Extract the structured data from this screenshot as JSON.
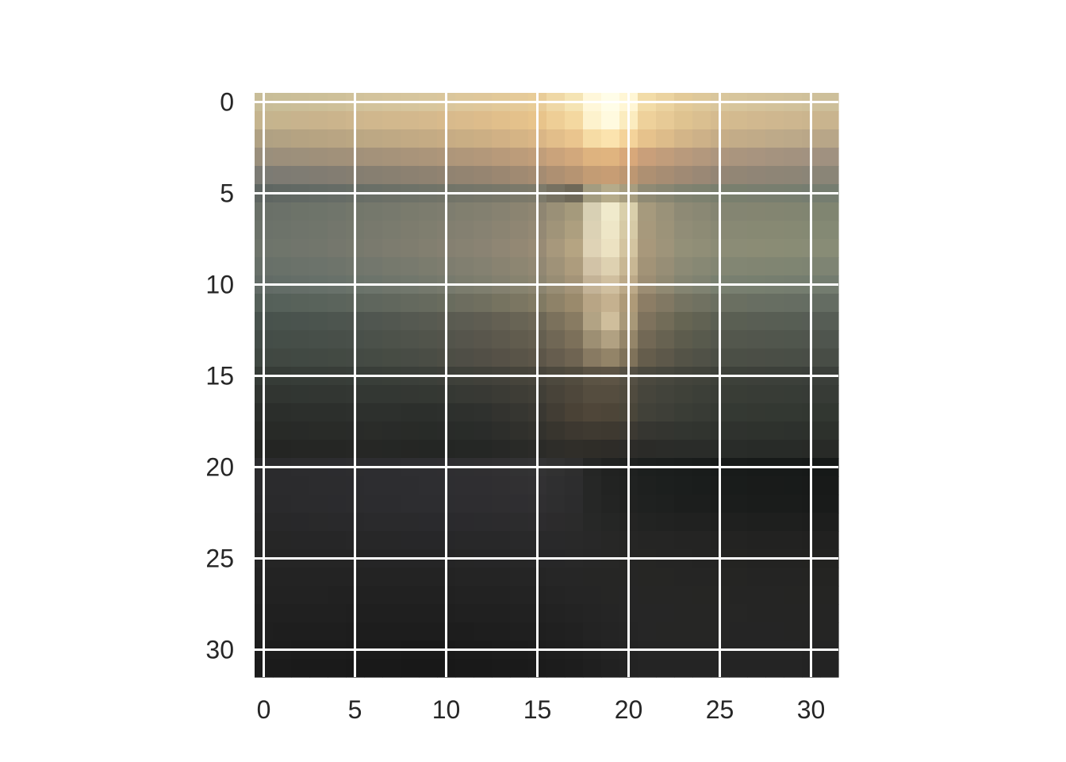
{
  "chart_data": {
    "type": "heatmap",
    "title": "",
    "xlabel": "",
    "ylabel": "",
    "xlim": [
      -0.5,
      31.5
    ],
    "ylim": [
      31.5,
      -0.5
    ],
    "grid": true,
    "x_ticks": [
      0,
      5,
      10,
      15,
      20,
      25,
      30
    ],
    "y_ticks": [
      0,
      5,
      10,
      15,
      20,
      25,
      30
    ],
    "x_tick_labels": [
      "0",
      "5",
      "10",
      "15",
      "20",
      "25",
      "30"
    ],
    "y_tick_labels": [
      "0",
      "5",
      "10",
      "15",
      "20",
      "25",
      "30"
    ],
    "image": {
      "rows": 32,
      "cols": 32,
      "row_keys": [
        0,
        1,
        2,
        3,
        4,
        5,
        6,
        8,
        10,
        11,
        12,
        14,
        15,
        17,
        19,
        20,
        22,
        24,
        26,
        28,
        30,
        31
      ],
      "col_keys": [
        0,
        3,
        6,
        9,
        12,
        15,
        17,
        18,
        19,
        20,
        21,
        23,
        25,
        28,
        31
      ],
      "key_colors": [
        [
          "#c8bd98",
          "#ccbf98",
          "#d3c39c",
          "#d8c69d",
          "#dfc79a",
          "#e8cc98",
          "#f5e4b4",
          "#fff7da",
          "#fffde8",
          "#fff6d5",
          "#f2dca8",
          "#e3ca98",
          "#d9c69c",
          "#d3c29b",
          "#cdbf9a"
        ],
        [
          "#c5b48e",
          "#c9b38c",
          "#d0b78d",
          "#d5b98d",
          "#ddbc8b",
          "#e8c48b",
          "#f4d8a0",
          "#fdf2cd",
          "#fffadf",
          "#fbecbf",
          "#eed19b",
          "#dfc390",
          "#d5bb8f",
          "#cfb78f",
          "#c9b48e"
        ],
        [
          "#b0a183",
          "#b7a482",
          "#bda884",
          "#c4ab84",
          "#ccaf84",
          "#dab686",
          "#eac58e",
          "#f6dca5",
          "#fbe3ae",
          "#f4d39a",
          "#e6c28c",
          "#d3b588",
          "#c6ad87",
          "#beaa89",
          "#b8a688"
        ],
        [
          "#9a8f7c",
          "#9f907a",
          "#a4927a",
          "#ab957a",
          "#b3987a",
          "#c19e7a",
          "#d2a87c",
          "#deb37f",
          "#e0b47f",
          "#d8a87a",
          "#c99f7a",
          "#b99a7c",
          "#ad967e",
          "#a5937f",
          "#a09180"
        ],
        [
          "#7c7b74",
          "#817c72",
          "#877f71",
          "#8e8271",
          "#968571",
          "#a58c72",
          "#b69472",
          "#c39c74",
          "#c79d74",
          "#bd9772",
          "#ae9072",
          "#a08a74",
          "#948675",
          "#8e8576",
          "#8a8577"
        ],
        [
          "#5f6662",
          "#646b65",
          "#6a6f67",
          "#707368",
          "#767669",
          "#7d7a6a",
          "#6e6858",
          "#a39c80",
          "#b5ab8a",
          "#a79d7f",
          "#8f8a74",
          "#808270",
          "#7a7f6e",
          "#787e6f",
          "#757d70"
        ],
        [
          "#6a7068",
          "#6e746a",
          "#75786c",
          "#7c7c6e",
          "#838070",
          "#8f8672",
          "#a59a7c",
          "#d8d0b4",
          "#f0eacc",
          "#d9cfab",
          "#a69a7d",
          "#8e8a75",
          "#858572",
          "#838571",
          "#808571"
        ],
        [
          "#6e746b",
          "#72766c",
          "#7a7a6e",
          "#827f70",
          "#8a8373",
          "#988b75",
          "#b5a482",
          "#dfd3b6",
          "#ece2c2",
          "#d3c4a0",
          "#a8987b",
          "#939078",
          "#8c8c76",
          "#8a8c75",
          "#888c76"
        ],
        [
          "#626b66",
          "#667069",
          "#6c746b",
          "#74786c",
          "#7e7e6e",
          "#8c8570",
          "#a49478",
          "#c4b397",
          "#d0bf9f",
          "#bca988",
          "#9c8d73",
          "#848471",
          "#798070",
          "#767e6f",
          "#737c6f"
        ],
        [
          "#556059",
          "#59635b",
          "#5f665d",
          "#666a5e",
          "#706f5f",
          "#817a63",
          "#9a8a6c",
          "#b8a585",
          "#c5b18f",
          "#ae9a78",
          "#8c7d65",
          "#757361",
          "#6b6f61",
          "#676e62",
          "#646c62"
        ],
        [
          "#48524d",
          "#4b544e",
          "#505650",
          "#575a51",
          "#5f5d52",
          "#6d6756",
          "#887b62",
          "#b2a384",
          "#cfbe9c",
          "#a89878",
          "#7e725d",
          "#666553",
          "#5b5f53",
          "#585e54",
          "#565d55"
        ],
        [
          "#404842",
          "#424943",
          "#454b44",
          "#4a4d45",
          "#524f46",
          "#5d5649",
          "#6f6452",
          "#887a62",
          "#938468",
          "#7f725a",
          "#655d4c",
          "#545347",
          "#4c4f46",
          "#4a4e46",
          "#484d46"
        ],
        [
          "#363c37",
          "#373d38",
          "#393e39",
          "#3c403a",
          "#41413a",
          "#48453c",
          "#524c3f",
          "#5b5344",
          "#5d5445",
          "#555044",
          "#4b493f",
          "#43443c",
          "#3e413a",
          "#3c403a",
          "#3b3f3a"
        ],
        [
          "#2b2e2b",
          "#2c2f2c",
          "#2d302d",
          "#2c2f2c",
          "#2f312e",
          "#3a3832",
          "#4a4236",
          "#4f4639",
          "#4d4538",
          "#4a463a",
          "#414139",
          "#3a3d36",
          "#353933",
          "#333832",
          "#323731"
        ],
        [
          "#242523",
          "#252624",
          "#262725",
          "#242624",
          "#252725",
          "#2b2b28",
          "#302e29",
          "#2f2d28",
          "#2e2c28",
          "#2d2c29",
          "#2b2b28",
          "#2a2c29",
          "#292c29",
          "#282b28",
          "#282a27"
        ],
        [
          "#2b2b2d",
          "#2c2c2e",
          "#2d2d30",
          "#2e2e31",
          "#302f31",
          "#333334",
          "#2e2e2e",
          "#252625",
          "#212221",
          "#1f2120",
          "#1c1f1e",
          "#1a1d1c",
          "#181b1a",
          "#171a19",
          "#161918"
        ],
        [
          "#2a2a2c",
          "#2b2b2d",
          "#2c2c2f",
          "#2d2d30",
          "#2e2d30",
          "#302f31",
          "#2c2c2d",
          "#262726",
          "#232423",
          "#212221",
          "#1f2120",
          "#1c1e1d",
          "#1b1d1c",
          "#1a1c1b",
          "#191b1a"
        ],
        [
          "#262626",
          "#262627",
          "#272728",
          "#272729",
          "#282829",
          "#29292a",
          "#292929",
          "#282828",
          "#272726",
          "#262625",
          "#252524",
          "#242423",
          "#232322",
          "#222221",
          "#212120"
        ],
        [
          "#232323",
          "#232323",
          "#232323",
          "#232323",
          "#242424",
          "#252525",
          "#262626",
          "#262625",
          "#262625",
          "#262625",
          "#262624",
          "#252524",
          "#252523",
          "#242423",
          "#242422"
        ],
        [
          "#202020",
          "#202020",
          "#1f1f1f",
          "#1f1f1f",
          "#202020",
          "#212121",
          "#232323",
          "#242424",
          "#252525",
          "#262626",
          "#262626",
          "#262625",
          "#262625",
          "#252524",
          "#252524"
        ],
        [
          "#1d1d1d",
          "#1c1c1c",
          "#1b1b1b",
          "#1a1a1a",
          "#1b1b1b",
          "#1d1d1d",
          "#1f1f1f",
          "#212121",
          "#232323",
          "#242424",
          "#252525",
          "#252525",
          "#252525",
          "#252525",
          "#242424"
        ],
        [
          "#1b1b1b",
          "#1a1a1a",
          "#191919",
          "#181818",
          "#191919",
          "#1b1b1b",
          "#1d1d1d",
          "#1f1f1f",
          "#212121",
          "#232323",
          "#242424",
          "#242424",
          "#242424",
          "#242424",
          "#232323"
        ]
      ]
    }
  }
}
